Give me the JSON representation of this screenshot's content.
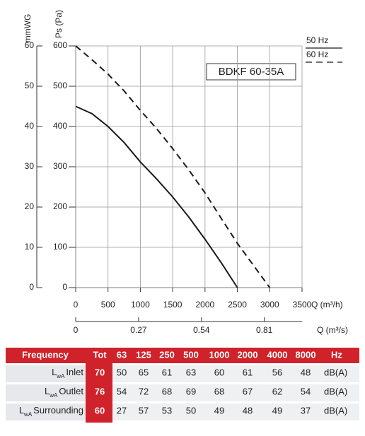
{
  "chart_data": {
    "type": "line",
    "label_box": "BDKF 60-35A",
    "x_label": "Q (m³/h)",
    "x2_label": "Q (m³/s)",
    "y_label": "Ps (Pa)",
    "y2_label": "mmWG",
    "x": [
      0,
      250,
      500,
      750,
      1000,
      1250,
      1500,
      1750,
      2000,
      2250,
      2500,
      2750,
      3000
    ],
    "series": [
      {
        "name": "50 Hz",
        "color": "#1a1a1a",
        "style": "solid",
        "values": [
          450,
          432,
          400,
          360,
          312,
          270,
          225,
          175,
          120,
          62,
          0,
          null,
          null
        ]
      },
      {
        "name": "60 Hz",
        "color": "#1a1a1a",
        "style": "dashed",
        "values": [
          600,
          566,
          530,
          488,
          440,
          395,
          345,
          292,
          235,
          172,
          110,
          55,
          0
        ]
      }
    ],
    "xlim": [
      0,
      3500
    ],
    "xticks": [
      0,
      500,
      1000,
      1500,
      2000,
      2500,
      3000,
      3500
    ],
    "x2lim": [
      0,
      0.972
    ],
    "x2ticks": [
      0,
      0.27,
      0.54,
      0.81
    ],
    "ylim": [
      0,
      600
    ],
    "yticks": [
      0,
      100,
      200,
      300,
      400,
      500,
      600
    ],
    "y2lim": [
      0,
      60
    ],
    "y2ticks": [
      0,
      10,
      20,
      30,
      40,
      50,
      60
    ],
    "grid": true,
    "legend": "top-right"
  },
  "table": {
    "header": [
      "Frequency",
      "Tot",
      "63",
      "125",
      "250",
      "500",
      "1000",
      "2000",
      "4000",
      "8000",
      "Hz"
    ],
    "rows": [
      {
        "label": {
          "symbol": "L",
          "sub": "wA",
          "name": "Inlet"
        },
        "tot": 70,
        "values": [
          50,
          65,
          61,
          63,
          60,
          61,
          56,
          48
        ],
        "unit": "dB(A)"
      },
      {
        "label": {
          "symbol": "L",
          "sub": "wA",
          "name": "Outlet"
        },
        "tot": 76,
        "values": [
          54,
          72,
          68,
          69,
          68,
          67,
          62,
          54
        ],
        "unit": "dB(A)"
      },
      {
        "label": {
          "symbol": "L",
          "sub": "wA",
          "name": "Surrounding"
        },
        "tot": 60,
        "values": [
          27,
          57,
          53,
          50,
          49,
          48,
          49,
          37
        ],
        "unit": "dB(A)"
      }
    ]
  }
}
